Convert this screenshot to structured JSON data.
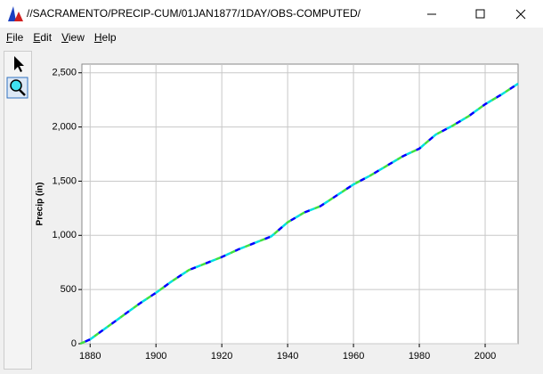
{
  "window": {
    "title": "//SACRAMENTO/PRECIP-CUM/01JAN1877/1DAY/OBS-COMPUTED/",
    "menu": [
      "File",
      "Edit",
      "View",
      "Help"
    ]
  },
  "chart_data": {
    "type": "line",
    "ylabel": "Precip (in)",
    "x": [
      1877,
      1880,
      1885,
      1890,
      1895,
      1900,
      1905,
      1910,
      1915,
      1920,
      1925,
      1930,
      1935,
      1940,
      1945,
      1950,
      1955,
      1960,
      1965,
      1970,
      1975,
      1980,
      1985,
      1990,
      1995,
      2000,
      2005,
      2010
    ],
    "series": [
      {
        "colors": [
          "#40e040",
          "#0000ff",
          "#00e0e0"
        ],
        "values": [
          0,
          40,
          150,
          260,
          370,
          470,
          580,
          680,
          740,
          800,
          870,
          930,
          990,
          1120,
          1210,
          1270,
          1370,
          1470,
          1550,
          1640,
          1730,
          1800,
          1930,
          2010,
          2100,
          2210,
          2300,
          2400
        ]
      }
    ],
    "xlim": [
      1877.5,
      2010
    ],
    "ylim": [
      0,
      2580
    ],
    "xticks": [
      1880,
      1900,
      1920,
      1940,
      1960,
      1980,
      2000
    ],
    "yticks": [
      0,
      500,
      {
        "value": 1000,
        "label": "1,000"
      },
      {
        "value": 1500,
        "label": "1,500"
      },
      {
        "value": 2000,
        "label": "2,000"
      },
      {
        "value": 2500,
        "label": "2,500"
      }
    ],
    "grid": true
  }
}
